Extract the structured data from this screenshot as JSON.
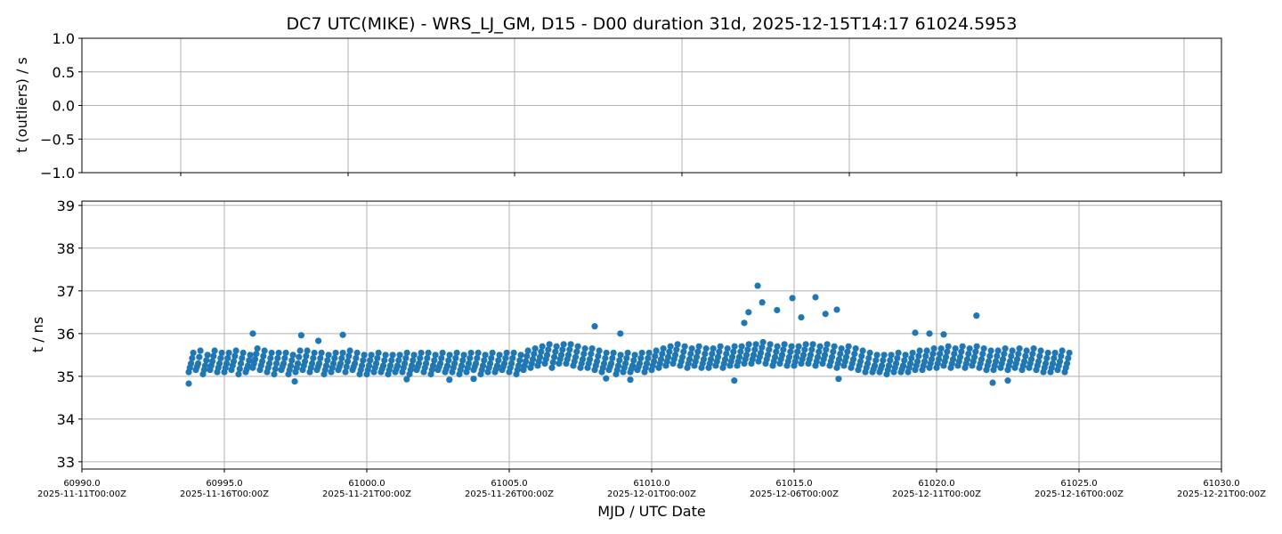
{
  "chart_data": [
    {
      "panel": "top",
      "type": "scatter",
      "title": "DC7 UTC(MIKE) - WRS_LJ_GM, D15 - D00 duration 31d, 2025-12-15T14:17 61024.5953",
      "ylabel": "t (outliers) / s",
      "ylim": [
        -1.0,
        1.0
      ],
      "yticks": [
        "1.0",
        "0.5",
        "0.0",
        "−0.5",
        "−1.0"
      ],
      "ytick_values": [
        1.0,
        0.5,
        0.0,
        -0.5,
        -1.0
      ],
      "grid": true,
      "points": []
    },
    {
      "panel": "bottom",
      "type": "scatter",
      "xlabel": "MJD / UTC Date",
      "ylabel": "t / ns",
      "xlim": [
        60990,
        61030
      ],
      "ylim": [
        32.83,
        39.1
      ],
      "grid": true,
      "color": "#1f77b4",
      "yticks": [
        "33",
        "34",
        "35",
        "36",
        "37",
        "38",
        "39"
      ],
      "ytick_values": [
        33,
        34,
        35,
        36,
        37,
        38,
        39
      ],
      "xticks": [
        {
          "value": 60990,
          "mjd": "60990.0",
          "date": "2025-11-11T00:00Z"
        },
        {
          "value": 60995,
          "mjd": "60995.0",
          "date": "2025-11-16T00:00Z"
        },
        {
          "value": 61000,
          "mjd": "61000.0",
          "date": "2025-11-21T00:00Z"
        },
        {
          "value": 61005,
          "mjd": "61005.0",
          "date": "2025-11-26T00:00Z"
        },
        {
          "value": 61010,
          "mjd": "61010.0",
          "date": "2025-12-01T00:00Z"
        },
        {
          "value": 61015,
          "mjd": "61015.0",
          "date": "2025-12-06T00:00Z"
        },
        {
          "value": 61020,
          "mjd": "61020.0",
          "date": "2025-12-11T00:00Z"
        },
        {
          "value": 61025,
          "mjd": "61025.0",
          "date": "2025-12-16T00:00Z"
        },
        {
          "value": 61030,
          "mjd": "61030.0",
          "date": "2025-12-21T00:00Z"
        }
      ],
      "sampled_series": {
        "x_start": 60993.75,
        "x_step": 0.25,
        "mid": [
          35.3,
          35.3,
          35.25,
          35.35,
          35.3,
          35.3,
          35.35,
          35.3,
          35.25,
          35.4,
          35.35,
          35.3,
          35.3,
          35.3,
          35.25,
          35.3,
          35.35,
          35.3,
          35.3,
          35.25,
          35.3,
          35.3,
          35.35,
          35.3,
          35.25,
          35.25,
          35.3,
          35.25,
          35.25,
          35.25,
          35.3,
          35.25,
          35.3,
          35.3,
          35.25,
          35.3,
          35.25,
          35.3,
          35.25,
          35.3,
          35.3,
          35.25,
          35.3,
          35.25,
          35.3,
          35.3,
          35.25,
          35.35,
          35.4,
          35.45,
          35.5,
          35.45,
          35.5,
          35.5,
          35.45,
          35.4,
          35.4,
          35.35,
          35.3,
          35.3,
          35.25,
          35.3,
          35.25,
          35.3,
          35.3,
          35.35,
          35.4,
          35.45,
          35.5,
          35.45,
          35.4,
          35.45,
          35.4,
          35.4,
          35.45,
          35.4,
          35.45,
          35.45,
          35.5,
          35.5,
          35.55,
          35.5,
          35.45,
          35.5,
          35.45,
          35.45,
          35.5,
          35.5,
          35.45,
          35.5,
          35.45,
          35.4,
          35.45,
          35.4,
          35.35,
          35.3,
          35.25,
          35.25,
          35.25,
          35.3,
          35.25,
          35.3,
          35.35,
          35.35,
          35.4,
          35.4,
          35.45,
          35.4,
          35.45,
          35.4,
          35.45,
          35.4,
          35.35,
          35.35,
          35.4,
          35.35,
          35.4,
          35.35,
          35.4,
          35.35,
          35.3,
          35.3,
          35.35,
          35.3
        ],
        "low": [
          35.1,
          35.15,
          35.05,
          35.15,
          35.1,
          35.1,
          35.15,
          35.05,
          35.1,
          35.2,
          35.15,
          35.1,
          35.05,
          35.15,
          35.05,
          35.1,
          35.15,
          35.1,
          35.15,
          35.05,
          35.1,
          35.15,
          35.1,
          35.15,
          35.05,
          35.05,
          35.1,
          35.1,
          35.05,
          35.1,
          35.1,
          35.05,
          35.15,
          35.1,
          35.05,
          35.15,
          35.1,
          35.1,
          35.05,
          35.1,
          35.15,
          35.05,
          35.1,
          35.1,
          35.15,
          35.1,
          35.05,
          35.15,
          35.2,
          35.25,
          35.3,
          35.2,
          35.3,
          35.3,
          35.25,
          35.2,
          35.2,
          35.15,
          35.1,
          35.15,
          35.05,
          35.1,
          35.1,
          35.15,
          35.1,
          35.15,
          35.2,
          35.25,
          35.3,
          35.25,
          35.2,
          35.25,
          35.2,
          35.2,
          35.25,
          35.2,
          35.25,
          35.25,
          35.3,
          35.3,
          35.35,
          35.3,
          35.25,
          35.3,
          35.25,
          35.25,
          35.3,
          35.3,
          35.25,
          35.3,
          35.25,
          35.2,
          35.25,
          35.2,
          35.15,
          35.1,
          35.1,
          35.1,
          35.05,
          35.1,
          35.1,
          35.1,
          35.15,
          35.15,
          35.2,
          35.2,
          35.25,
          35.2,
          35.25,
          35.2,
          35.25,
          35.2,
          35.15,
          35.15,
          35.2,
          35.15,
          35.2,
          35.15,
          35.2,
          35.15,
          35.1,
          35.1,
          35.15,
          35.1
        ],
        "high": [
          35.55,
          35.6,
          35.5,
          35.6,
          35.55,
          35.55,
          35.6,
          35.55,
          35.5,
          35.65,
          35.6,
          35.55,
          35.55,
          35.55,
          35.5,
          35.6,
          35.6,
          35.55,
          35.55,
          35.5,
          35.55,
          35.55,
          35.6,
          35.55,
          35.5,
          35.5,
          35.55,
          35.5,
          35.5,
          35.5,
          35.55,
          35.5,
          35.55,
          35.55,
          35.5,
          35.55,
          35.5,
          35.55,
          35.5,
          35.55,
          35.55,
          35.5,
          35.55,
          35.5,
          35.55,
          35.55,
          35.5,
          35.6,
          35.65,
          35.7,
          35.75,
          35.7,
          35.75,
          35.75,
          35.7,
          35.65,
          35.65,
          35.6,
          35.55,
          35.55,
          35.5,
          35.55,
          35.5,
          35.55,
          35.55,
          35.6,
          35.65,
          35.7,
          35.75,
          35.7,
          35.65,
          35.7,
          35.65,
          35.65,
          35.7,
          35.65,
          35.7,
          35.7,
          35.75,
          35.75,
          35.8,
          35.75,
          35.7,
          35.75,
          35.7,
          35.7,
          35.75,
          35.75,
          35.7,
          35.75,
          35.7,
          35.65,
          35.7,
          35.65,
          35.6,
          35.55,
          35.5,
          35.5,
          35.5,
          35.55,
          35.5,
          35.55,
          35.6,
          35.6,
          35.65,
          35.65,
          35.7,
          35.65,
          35.7,
          35.65,
          35.7,
          35.65,
          35.6,
          35.6,
          35.65,
          35.6,
          35.65,
          35.6,
          35.65,
          35.6,
          35.55,
          35.55,
          35.6,
          35.55
        ]
      },
      "outliers": [
        [
          60993.75,
          34.83
        ],
        [
          60996.0,
          36.0
        ],
        [
          60997.47,
          34.88
        ],
        [
          60997.7,
          35.96
        ],
        [
          60998.3,
          35.83
        ],
        [
          60999.16,
          35.97
        ],
        [
          61001.4,
          34.93
        ],
        [
          61002.9,
          34.92
        ],
        [
          61003.75,
          34.94
        ],
        [
          61008.0,
          36.17
        ],
        [
          61008.4,
          34.95
        ],
        [
          61008.9,
          36.0
        ],
        [
          61009.25,
          34.92
        ],
        [
          61012.9,
          34.9
        ],
        [
          61013.25,
          36.25
        ],
        [
          61013.4,
          36.5
        ],
        [
          61013.72,
          37.12
        ],
        [
          61013.88,
          36.73
        ],
        [
          61014.4,
          36.55
        ],
        [
          61014.94,
          36.83
        ],
        [
          61015.25,
          36.38
        ],
        [
          61015.75,
          36.85
        ],
        [
          61016.1,
          36.46
        ],
        [
          61016.5,
          36.56
        ],
        [
          61016.56,
          34.94
        ],
        [
          61019.25,
          36.02
        ],
        [
          61019.75,
          36.0
        ],
        [
          61020.25,
          35.98
        ],
        [
          61021.4,
          36.42
        ],
        [
          61021.97,
          34.85
        ],
        [
          61022.5,
          34.9
        ]
      ]
    }
  ]
}
